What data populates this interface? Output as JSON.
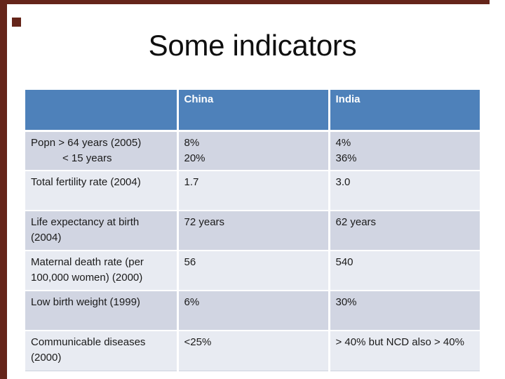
{
  "title": "Some indicators",
  "colors": {
    "frame": "#65251a",
    "header_bg": "#4e81ba",
    "header_text": "#ffffff",
    "band_dark": "#d1d5e2",
    "band_light": "#e8ebf2",
    "body_text": "#1a1a1a"
  },
  "table": {
    "columns": [
      "",
      "China",
      "India"
    ],
    "rows": [
      {
        "band": "dark",
        "cells": [
          {
            "lines": [
              {
                "text": "Popn > 64 years (2005)"
              },
              {
                "text": "< 15 years",
                "indent": true
              }
            ]
          },
          {
            "lines": [
              {
                "text": "8%"
              },
              {
                "text": "20%"
              }
            ]
          },
          {
            "lines": [
              {
                "text": "4%"
              },
              {
                "text": "36%"
              }
            ]
          }
        ]
      },
      {
        "band": "light",
        "cells": [
          {
            "lines": [
              {
                "text": "Total fertility rate (2004)"
              }
            ]
          },
          {
            "lines": [
              {
                "text": "1.7"
              }
            ]
          },
          {
            "lines": [
              {
                "text": "3.0"
              }
            ]
          }
        ]
      },
      {
        "band": "dark",
        "cells": [
          {
            "lines": [
              {
                "text": "Life expectancy at birth (2004)"
              }
            ]
          },
          {
            "lines": [
              {
                "text": "72 years"
              }
            ]
          },
          {
            "lines": [
              {
                "text": "62 years"
              }
            ]
          }
        ]
      },
      {
        "band": "light",
        "cells": [
          {
            "lines": [
              {
                "text": "Maternal death rate (per 100,000 women) (2000)"
              }
            ]
          },
          {
            "lines": [
              {
                "text": "56"
              }
            ]
          },
          {
            "lines": [
              {
                "text": "540"
              }
            ]
          }
        ]
      },
      {
        "band": "dark",
        "cells": [
          {
            "lines": [
              {
                "text": "Low birth weight (1999)"
              }
            ]
          },
          {
            "lines": [
              {
                "text": "6%"
              }
            ]
          },
          {
            "lines": [
              {
                "text": "30%"
              }
            ]
          }
        ]
      },
      {
        "band": "light",
        "cells": [
          {
            "lines": [
              {
                "text": "Communicable diseases (2000)"
              }
            ]
          },
          {
            "lines": [
              {
                "text": "<25%"
              }
            ]
          },
          {
            "lines": [
              {
                "text": "> 40% but NCD also > 40%"
              }
            ]
          }
        ]
      }
    ]
  }
}
